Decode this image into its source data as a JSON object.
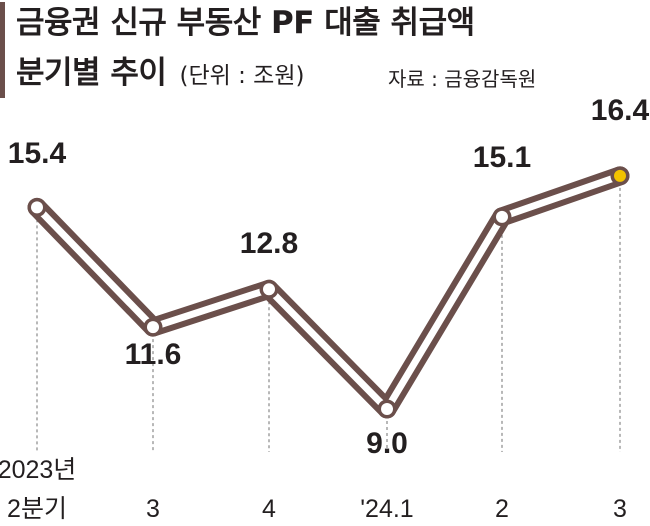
{
  "header": {
    "title_line1": "금융권 신규 부동산 PF 대출 취급액",
    "title_line2": "분기별 추이",
    "unit": "(단위 : 조원)",
    "source": "자료 : 금융감독원"
  },
  "chart_data": {
    "type": "line",
    "title": "금융권 신규 부동산 PF 대출 취급액 분기별 추이",
    "unit": "조원",
    "categories": [
      [
        "2023년",
        "2분기"
      ],
      [
        "3"
      ],
      [
        "4"
      ],
      [
        "'24.1"
      ],
      [
        "2"
      ],
      [
        "3"
      ]
    ],
    "values": [
      15.4,
      11.6,
      12.8,
      9.0,
      15.1,
      16.4
    ],
    "value_labels": [
      "15.4",
      "11.6",
      "12.8",
      "9.0",
      "15.1",
      "16.4"
    ],
    "label_position": [
      "above",
      "below",
      "above",
      "below",
      "above",
      "above"
    ],
    "highlight_index": 5,
    "grid": false,
    "legend": "none",
    "colors": {
      "line_outer": "#6b4f4b",
      "line_inner": "#ffffff",
      "highlight": "#f2c300",
      "guide": "#888888"
    }
  }
}
